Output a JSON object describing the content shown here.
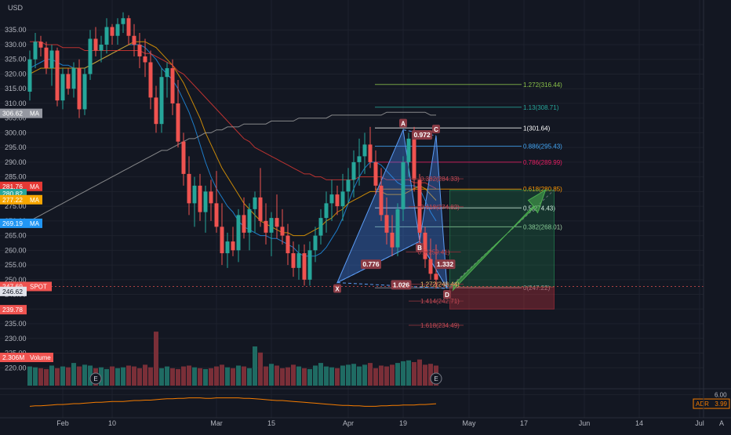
{
  "currency_label": "USD",
  "chart_data": {
    "type": "candlestick",
    "price_axis": {
      "range": [
        215,
        342
      ],
      "ticks": [
        "335.00",
        "330.00",
        "325.00",
        "320.00",
        "315.00",
        "310.00",
        "305.00",
        "300.00",
        "295.00",
        "290.00",
        "285.00",
        "280.00",
        "275.00",
        "270.00",
        "265.00",
        "260.00",
        "255.00",
        "250.00",
        "245.00",
        "240.00",
        "235.00",
        "230.00",
        "225.00",
        "220.00"
      ]
    },
    "time_axis": {
      "ticks": [
        {
          "label": "Feb",
          "day": 6
        },
        {
          "label": "10",
          "day": 15
        },
        {
          "label": "Mar",
          "day": 34
        },
        {
          "label": "15",
          "day": 44
        },
        {
          "label": "Apr",
          "day": 58
        },
        {
          "label": "19",
          "day": 68
        },
        {
          "label": "May",
          "day": 80
        },
        {
          "label": "17",
          "day": 90
        },
        {
          "label": "Jun",
          "day": 101
        },
        {
          "label": "14",
          "day": 111
        },
        {
          "label": "Jul",
          "day": 122
        }
      ]
    },
    "candles": [
      [
        314,
        328,
        311,
        325
      ],
      [
        325,
        334,
        322,
        331
      ],
      [
        331,
        333,
        326,
        329
      ],
      [
        329,
        331,
        320,
        322
      ],
      [
        322,
        330,
        316,
        328
      ],
      [
        328,
        329,
        309,
        311
      ],
      [
        311,
        322,
        308,
        320
      ],
      [
        320,
        322,
        313,
        315
      ],
      [
        315,
        324,
        312,
        322
      ],
      [
        322,
        325,
        305,
        308
      ],
      [
        308,
        322,
        306,
        320
      ],
      [
        320,
        335,
        318,
        332
      ],
      [
        332,
        336,
        326,
        328
      ],
      [
        328,
        333,
        324,
        330
      ],
      [
        330,
        339,
        327,
        336
      ],
      [
        336,
        337,
        330,
        333
      ],
      [
        333,
        339,
        330,
        337
      ],
      [
        337,
        341,
        334,
        339
      ],
      [
        339,
        340,
        330,
        333
      ],
      [
        333,
        337,
        326,
        330
      ],
      [
        330,
        334,
        322,
        326
      ],
      [
        326,
        332,
        319,
        324
      ],
      [
        324,
        328,
        308,
        312
      ],
      [
        312,
        316,
        300,
        303
      ],
      [
        303,
        322,
        300,
        319
      ],
      [
        319,
        324,
        312,
        322
      ],
      [
        322,
        325,
        306,
        310
      ],
      [
        310,
        318,
        295,
        297
      ],
      [
        297,
        300,
        282,
        286
      ],
      [
        286,
        292,
        272,
        276
      ],
      [
        276,
        285,
        268,
        282
      ],
      [
        282,
        286,
        270,
        273
      ],
      [
        273,
        282,
        266,
        280
      ],
      [
        280,
        284,
        270,
        276
      ],
      [
        276,
        287,
        266,
        268
      ],
      [
        268,
        276,
        255,
        259
      ],
      [
        259,
        266,
        254,
        263
      ],
      [
        263,
        268,
        258,
        260
      ],
      [
        260,
        274,
        256,
        272
      ],
      [
        272,
        278,
        264,
        266
      ],
      [
        266,
        276,
        260,
        274
      ],
      [
        274,
        280,
        266,
        278
      ],
      [
        278,
        288,
        268,
        270
      ],
      [
        270,
        276,
        262,
        266
      ],
      [
        266,
        273,
        258,
        271
      ],
      [
        271,
        279,
        264,
        268
      ],
      [
        268,
        274,
        262,
        265
      ],
      [
        265,
        269,
        255,
        259
      ],
      [
        259,
        263,
        251,
        254
      ],
      [
        254,
        262,
        250,
        259
      ],
      [
        259,
        262,
        248,
        250
      ],
      [
        250,
        263,
        248,
        260
      ],
      [
        260,
        268,
        256,
        265
      ],
      [
        265,
        274,
        262,
        271
      ],
      [
        271,
        280,
        266,
        276
      ],
      [
        276,
        284,
        270,
        279
      ],
      [
        279,
        282,
        272,
        275
      ],
      [
        275,
        286,
        270,
        280
      ],
      [
        280,
        288,
        276,
        284
      ],
      [
        284,
        294,
        278,
        290
      ],
      [
        290,
        298,
        282,
        292
      ],
      [
        292,
        300,
        286,
        296
      ],
      [
        296,
        302,
        288,
        290
      ],
      [
        290,
        294,
        279,
        282
      ],
      [
        282,
        288,
        270,
        272
      ],
      [
        272,
        278,
        262,
        266
      ],
      [
        266,
        272,
        258,
        261
      ],
      [
        261,
        276,
        258,
        274
      ],
      [
        274,
        292,
        270,
        290
      ],
      [
        290,
        300,
        285,
        298
      ],
      [
        298,
        302,
        280,
        284
      ],
      [
        284,
        286,
        262,
        266
      ],
      [
        266,
        268,
        254,
        257
      ],
      [
        257,
        264,
        250,
        252
      ],
      [
        252,
        262,
        247,
        250
      ]
    ],
    "volume_axis": {
      "range": [
        0,
        9
      ]
    },
    "volume": [
      2.2,
      2.1,
      2.0,
      1.9,
      2.3,
      2.0,
      2.2,
      2.1,
      2.6,
      2.2,
      2.4,
      2.3,
      2.0,
      2.1,
      1.9,
      2.2,
      2.0,
      2.1,
      2.3,
      2.2,
      2.0,
      2.4,
      2.1,
      6.2,
      2.0,
      2.2,
      2.0,
      1.9,
      2.2,
      2.3,
      2.1,
      2.0,
      1.9,
      2.0,
      2.2,
      2.4,
      2.1,
      2.0,
      2.3,
      2.2,
      2.0,
      4.5,
      3.8,
      2.2,
      2.5,
      2.3,
      2.0,
      2.1,
      2.4,
      2.2,
      2.0,
      1.9,
      2.3,
      2.6,
      2.2,
      2.1,
      2.0,
      2.3,
      2.4,
      2.5,
      2.2,
      2.4,
      2.6,
      2.0,
      2.3,
      2.2,
      2.4,
      2.6,
      2.8,
      2.9,
      2.7,
      3.0,
      2.4,
      2.5,
      2.3
    ],
    "volume_tag": "2.306M",
    "ma_series": [
      {
        "color": "#2196f3",
        "values": [
          322,
          323,
          324,
          325,
          325,
          324,
          323,
          323,
          322,
          322,
          322,
          323,
          324,
          325,
          326,
          327,
          328,
          329,
          330,
          330,
          330,
          329,
          327,
          325,
          322,
          320,
          318,
          315,
          311,
          307,
          302,
          296,
          290,
          285,
          281,
          278,
          275,
          273,
          270,
          268,
          267,
          266,
          265,
          265,
          264,
          264,
          263,
          262,
          261,
          259,
          258,
          258,
          258,
          259,
          261,
          264,
          267,
          271,
          276,
          281,
          285,
          288,
          290,
          290,
          289,
          287,
          285,
          283,
          282,
          282,
          282,
          281,
          277,
          273,
          270
        ]
      },
      {
        "color": "#f7a600",
        "values": [
          320,
          321,
          322,
          322,
          322,
          322,
          322,
          322,
          322,
          322,
          322,
          323,
          324,
          325,
          326,
          327,
          328,
          329,
          330,
          331,
          331,
          331,
          330,
          329,
          327,
          325,
          323,
          320,
          317,
          313,
          309,
          305,
          300,
          296,
          292,
          288,
          285,
          282,
          279,
          276,
          274,
          272,
          270,
          269,
          268,
          267,
          266,
          266,
          265,
          265,
          265,
          266,
          267,
          268,
          270,
          271,
          273,
          274,
          276,
          277,
          278,
          279,
          280,
          280,
          280,
          279,
          279,
          279,
          279,
          280,
          281,
          282,
          281,
          279,
          277
        ]
      },
      {
        "color": "#e53935",
        "values": [
          331,
          331,
          331,
          330,
          330,
          330,
          329,
          329,
          329,
          329,
          328,
          328,
          328,
          328,
          328,
          328,
          328,
          328,
          328,
          328,
          328,
          327,
          327,
          326,
          325,
          324,
          323,
          321,
          320,
          318,
          316,
          314,
          312,
          310,
          308,
          306,
          304,
          302,
          300,
          298,
          297,
          295,
          294,
          293,
          292,
          291,
          290,
          289,
          288,
          287,
          286,
          286,
          285,
          285,
          284,
          284,
          284,
          284,
          284,
          284,
          285,
          285,
          285,
          285,
          285,
          284,
          284,
          284,
          284,
          284,
          283,
          283,
          283,
          282,
          281
        ]
      },
      {
        "color": "#a5a5a5",
        "values": [
          270,
          271,
          272,
          273,
          274,
          275,
          276,
          277,
          278,
          279,
          280,
          281,
          282,
          283,
          284,
          285,
          286,
          287,
          288,
          289,
          290,
          291,
          292,
          293,
          294,
          294,
          295,
          296,
          297,
          298,
          298,
          299,
          300,
          300,
          301,
          301,
          302,
          302,
          302,
          303,
          303,
          303,
          303,
          303,
          304,
          304,
          304,
          304,
          304,
          305,
          305,
          305,
          305,
          305,
          305,
          306,
          306,
          306,
          306,
          306,
          306,
          306,
          306,
          306,
          306,
          307,
          307,
          307,
          307,
          307,
          307,
          307,
          307,
          306,
          306
        ]
      }
    ],
    "price_tags": [
      {
        "label": "306.62",
        "name": "MA",
        "price": 306.62,
        "color": "#9598a1"
      },
      {
        "label": "281.76",
        "name": "MA",
        "price": 281.76,
        "color": "#e53935"
      },
      {
        "label": "280.82",
        "name": "",
        "price": 279.3,
        "color": "#26a69a"
      },
      {
        "label": "277.22",
        "name": "MA",
        "price": 277.22,
        "color": "#f7a600"
      },
      {
        "label": "269.19",
        "name": "MA",
        "price": 269.19,
        "color": "#2196f3"
      },
      {
        "label": "247.69",
        "name": "SPOT",
        "price": 247.69,
        "color": "#ef5350"
      },
      {
        "label": "246.62",
        "name": "",
        "price": 246.0,
        "color": "#e0e3eb"
      },
      {
        "label": "239.78",
        "name": "",
        "price": 239.78,
        "color": "#ef5350"
      }
    ],
    "harmonic": {
      "points": [
        {
          "label": "X",
          "day": 56,
          "price": 249
        },
        {
          "label": "A",
          "day": 68,
          "price": 301
        },
        {
          "label": "B",
          "day": 71,
          "price": 263
        },
        {
          "label": "C",
          "day": 74,
          "price": 299
        },
        {
          "label": "D",
          "day": 76,
          "price": 247
        }
      ],
      "ratios": [
        {
          "text": "0.776",
          "day": 62,
          "price": 255
        },
        {
          "text": "0.972",
          "day": 71.3,
          "price": 299
        },
        {
          "text": "1.332",
          "day": 75.5,
          "price": 255
        },
        {
          "text": "1.026",
          "day": 67.5,
          "price": 248
        }
      ],
      "extensions": [
        {
          "text": "1.272(248.44)",
          "day": 71,
          "price": 248.44
        },
        {
          "text": "1.414(242.71)",
          "day": 71,
          "price": 242.71
        },
        {
          "text": "1.618(234.49)",
          "day": 71,
          "price": 234.49
        },
        {
          "text": "0.382(284.33)",
          "day": 71,
          "price": 284.33
        },
        {
          "text": "0.618(274.82)",
          "day": 71,
          "price": 274.82
        },
        {
          "text": "0.5(259.41)",
          "day": 70.5,
          "price": 259.41
        }
      ]
    },
    "fib_levels": [
      {
        "text": "1.272(316.44)",
        "price": 316.44,
        "color": "#8bc34a"
      },
      {
        "text": "1.13(308.71)",
        "price": 308.71,
        "color": "#26a69a"
      },
      {
        "text": "1(301.64)",
        "price": 301.64,
        "color": "#ffffff"
      },
      {
        "text": "0.886(295.43)",
        "price": 295.43,
        "color": "#42a5f5"
      },
      {
        "text": "0.786(289.99)",
        "price": 289.99,
        "color": "#e91e63"
      },
      {
        "text": "0.618(280.85)",
        "price": 280.85,
        "color": "#ff9800"
      },
      {
        "text": "0.5(274.43)",
        "price": 274.43,
        "color": "#ffffff"
      },
      {
        "text": "0.382(268.01)",
        "price": 268.01,
        "color": "#a5d6a7"
      },
      {
        "text": "0(247.22)",
        "price": 247.22,
        "color": "#9598a1"
      }
    ],
    "position": {
      "entry": 247.5,
      "target": 280.5,
      "stop": 240.0,
      "start_day": 76.5,
      "end_day": 95.5
    },
    "earnings_markers": [
      {
        "label": "E",
        "day": 12
      },
      {
        "label": "E",
        "day": 74
      }
    ],
    "indicator": {
      "name": "ADR",
      "value": "3.99",
      "axis_tick": "6.00",
      "range": [
        1,
        7
      ],
      "values": [
        3.4,
        3.5,
        3.5,
        3.6,
        3.7,
        3.8,
        3.8,
        3.9,
        4.0,
        4.0,
        4.1,
        4.2,
        4.3,
        4.3,
        4.4,
        4.5,
        4.5,
        4.5,
        4.6,
        4.7,
        4.7,
        4.8,
        4.8,
        4.9,
        5.0,
        5.1,
        5.1,
        5.2,
        5.2,
        5.3,
        5.3,
        5.3,
        5.2,
        5.2,
        5.3,
        5.3,
        5.3,
        5.3,
        5.3,
        5.2,
        5.2,
        5.1,
        5.0,
        4.9,
        4.8,
        4.7,
        4.7,
        4.6,
        4.5,
        4.4,
        4.3,
        4.2,
        4.1,
        4.0,
        3.9,
        3.8,
        3.7,
        3.6,
        3.6,
        3.5,
        3.5,
        3.4,
        3.4,
        3.4,
        3.5,
        3.5,
        3.6,
        3.6,
        3.7,
        3.7,
        3.7,
        3.8,
        3.8,
        3.9,
        3.99
      ]
    },
    "corner_label": "A"
  }
}
